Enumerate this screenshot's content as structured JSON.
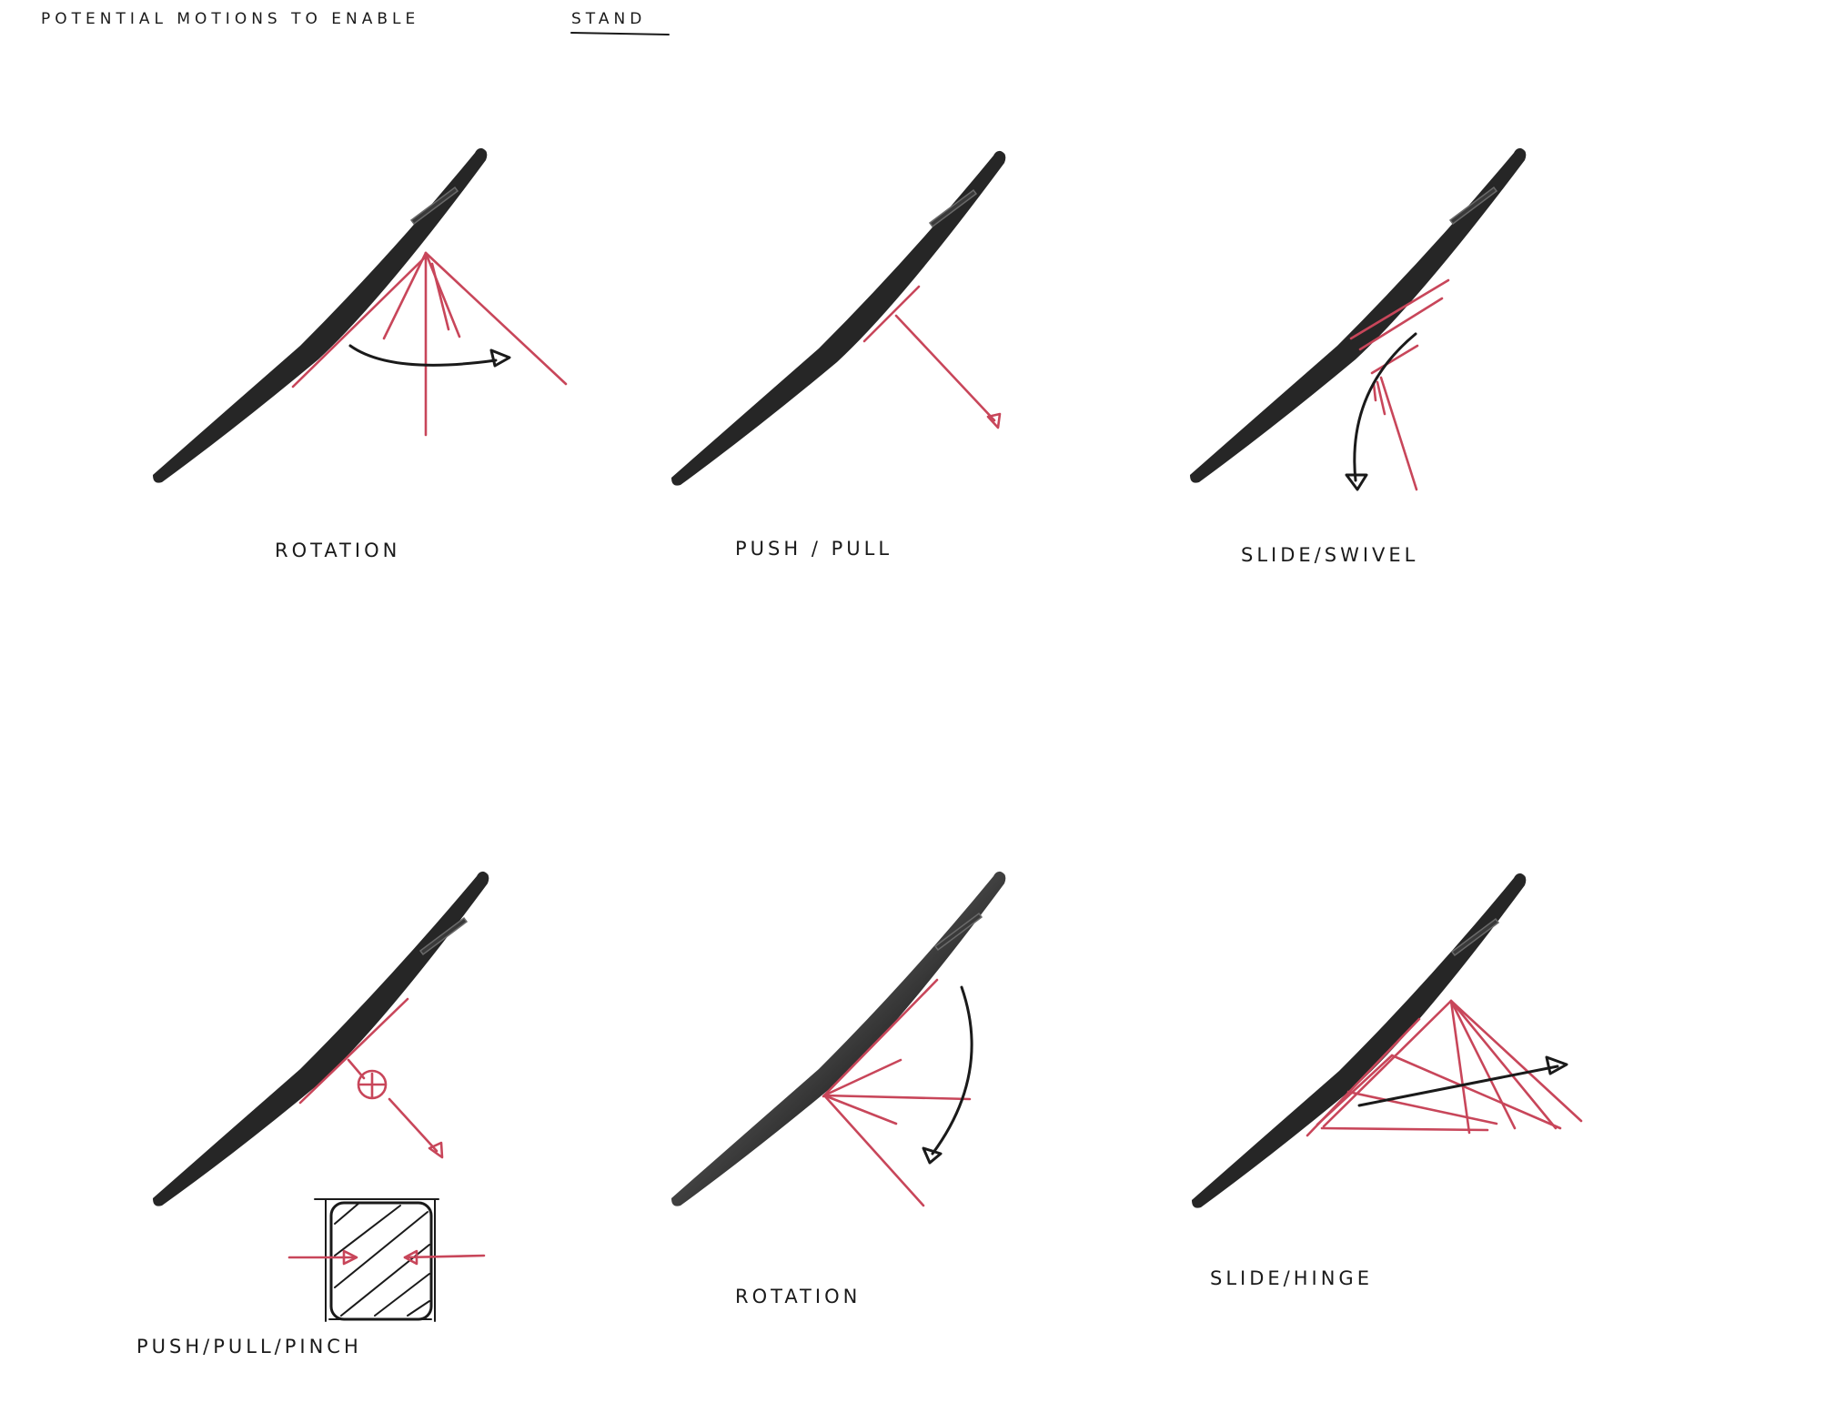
{
  "title": {
    "prefix": "POTENTIAL MOTIONS TO ENABLE",
    "emphasis": "STAND"
  },
  "sketches": [
    {
      "caption": "ROTATION"
    },
    {
      "caption": "PUSH / PULL"
    },
    {
      "caption": "SLIDE/SWIVEL"
    },
    {
      "caption": "PUSH/PULL/PINCH"
    },
    {
      "caption": "ROTATION"
    },
    {
      "caption": "SLIDE/HINGE"
    }
  ],
  "colors": {
    "device": "#262626",
    "annotation_red": "#c8465a",
    "ink": "#1a1a1a",
    "paper": "#ffffff"
  }
}
